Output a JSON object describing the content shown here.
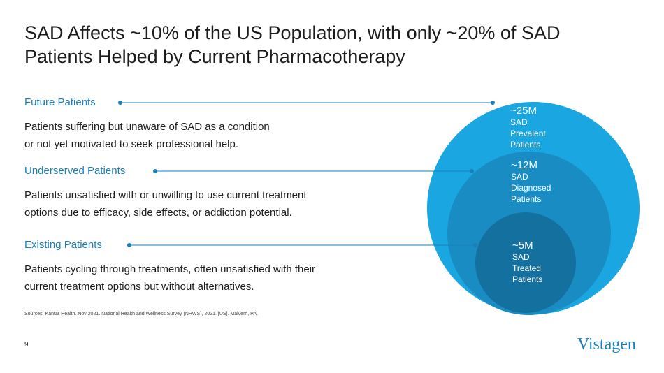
{
  "title": [
    "SAD Affects ~10% of the US Population, with only ~20% of SAD",
    "Patients Helped by Current Pharmacotherapy"
  ],
  "segments": [
    {
      "heading": "Future Patients",
      "description": [
        "Patients suffering but unaware of SAD as a condition",
        "or not yet motivated to seek professional help."
      ]
    },
    {
      "heading": "Underserved Patients",
      "description": [
        "Patients unsatisfied with or unwilling to use current treatment",
        "options due to efficacy, side effects, or addiction potential."
      ]
    },
    {
      "heading": "Existing Patients",
      "description": [
        "Patients cycling through treatments, often unsatisfied with their",
        "current treatment options but without alternatives."
      ]
    }
  ],
  "circles": [
    {
      "value": "~25M",
      "label": [
        "SAD",
        "Prevalent",
        "Patients"
      ]
    },
    {
      "value": "~12M",
      "label": [
        "SAD",
        "Diagnosed",
        "Patients"
      ]
    },
    {
      "value": "~5M",
      "label": [
        "SAD",
        "Treated",
        "Patients"
      ]
    }
  ],
  "sources": "Sources: Kantar Health. Nov 2021. National Health and Wellness Survey (NHWS), 2021. [US]. Malvern, PA.",
  "page_number": 9,
  "logo": "Vistagen"
}
